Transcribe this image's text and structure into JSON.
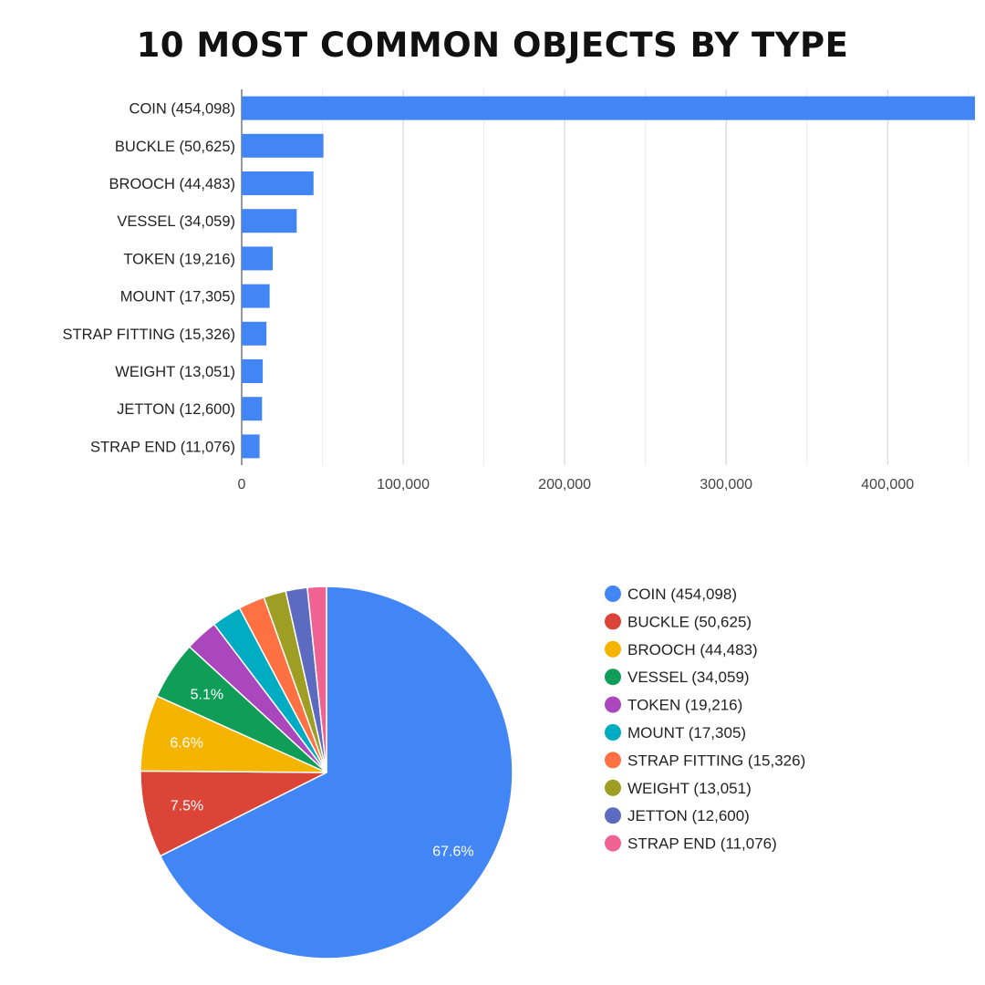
{
  "title": "10 MOST COMMON OBJECTS BY TYPE",
  "chart_data": [
    {
      "type": "bar",
      "orientation": "horizontal",
      "categories": [
        "COIN (454,098)",
        "BUCKLE (50,625)",
        "BROOCH (44,483)",
        "VESSEL (34,059)",
        "TOKEN (19,216)",
        "MOUNT (17,305)",
        "STRAP FITTING (15,326)",
        "WEIGHT (13,051)",
        "JETTON (12,600)",
        "STRAP END (11,076)"
      ],
      "values": [
        454098,
        50625,
        44483,
        34059,
        19216,
        17305,
        15326,
        13051,
        12600,
        11076
      ],
      "xlim": [
        0,
        454098
      ],
      "xticks": [
        0,
        100000,
        200000,
        300000,
        400000
      ],
      "xtick_labels": [
        "0",
        "100,000",
        "200,000",
        "300,000",
        "400,000"
      ],
      "grid": true,
      "bar_color": "#4285f4"
    },
    {
      "type": "pie",
      "labels": [
        "COIN (454,098)",
        "BUCKLE (50,625)",
        "BROOCH (44,483)",
        "VESSEL (34,059)",
        "TOKEN (19,216)",
        "MOUNT (17,305)",
        "STRAP FITTING (15,326)",
        "WEIGHT (13,051)",
        "JETTON (12,600)",
        "STRAP END (11,076)"
      ],
      "values": [
        454098,
        50625,
        44483,
        34059,
        19216,
        17305,
        15326,
        13051,
        12600,
        11076
      ],
      "colors": [
        "#4285f4",
        "#db4437",
        "#f4b400",
        "#0f9d58",
        "#ab47bc",
        "#00acc1",
        "#ff7043",
        "#9e9d24",
        "#5c6bc0",
        "#f06292"
      ],
      "slice_labels": [
        "67.6%",
        "7.5%",
        "6.6%",
        "5.1%",
        "",
        "",
        "",
        "",
        "",
        ""
      ],
      "legend_position": "right"
    }
  ]
}
